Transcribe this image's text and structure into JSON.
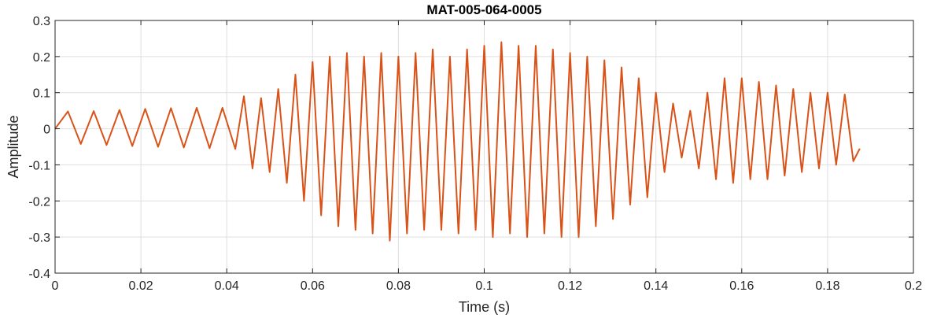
{
  "chart_data": {
    "type": "line",
    "title": "MAT-005-064-0005",
    "xlabel": "Time (s)",
    "ylabel": "Amplitude",
    "xlim": [
      0,
      0.2
    ],
    "ylim": [
      -0.4,
      0.3
    ],
    "xticks": [
      0,
      0.02,
      0.04,
      0.06,
      0.08,
      0.1,
      0.12,
      0.14,
      0.16,
      0.18,
      0.2
    ],
    "xtick_labels": [
      "0",
      "0.02",
      "0.04",
      "0.06",
      "0.08",
      "0.1",
      "0.12",
      "0.14",
      "0.16",
      "0.18",
      "0.2"
    ],
    "yticks": [
      0.3,
      0.2,
      0.1,
      0,
      -0.1,
      -0.2,
      -0.3,
      -0.4
    ],
    "ytick_labels": [
      "0.3",
      "0.2",
      "0.1",
      "0",
      "-0.1",
      "-0.2",
      "-0.3",
      "-0.4"
    ],
    "grid": true,
    "series": [
      {
        "color": "#D95319",
        "x": [
          0,
          0.003,
          0.006,
          0.009,
          0.012,
          0.015,
          0.018,
          0.021,
          0.024,
          0.027,
          0.03,
          0.033,
          0.036,
          0.039,
          0.042,
          0.044,
          0.046,
          0.048,
          0.05,
          0.052,
          0.054,
          0.056,
          0.058,
          0.06,
          0.062,
          0.064,
          0.066,
          0.068,
          0.07,
          0.072,
          0.074,
          0.076,
          0.078,
          0.08,
          0.082,
          0.084,
          0.086,
          0.088,
          0.09,
          0.092,
          0.094,
          0.096,
          0.098,
          0.1,
          0.102,
          0.104,
          0.106,
          0.108,
          0.11,
          0.112,
          0.114,
          0.116,
          0.118,
          0.12,
          0.122,
          0.124,
          0.126,
          0.128,
          0.13,
          0.132,
          0.134,
          0.136,
          0.138,
          0.14,
          0.142,
          0.144,
          0.146,
          0.148,
          0.15,
          0.152,
          0.154,
          0.156,
          0.158,
          0.16,
          0.162,
          0.164,
          0.166,
          0.168,
          0.17,
          0.172,
          0.174,
          0.176,
          0.178,
          0.18,
          0.182,
          0.184,
          0.186,
          0.1875
        ],
        "y": [
          0,
          0.048,
          -0.042,
          0.049,
          -0.045,
          0.052,
          -0.048,
          0.055,
          -0.05,
          0.057,
          -0.052,
          0.058,
          -0.054,
          0.058,
          -0.056,
          0.09,
          -0.11,
          0.085,
          -0.12,
          0.11,
          -0.15,
          0.15,
          -0.2,
          0.185,
          -0.24,
          0.2,
          -0.27,
          0.21,
          -0.28,
          0.2,
          -0.29,
          0.21,
          -0.31,
          0.2,
          -0.29,
          0.21,
          -0.28,
          0.22,
          -0.28,
          0.2,
          -0.29,
          0.22,
          -0.28,
          0.23,
          -0.3,
          0.24,
          -0.29,
          0.23,
          -0.3,
          0.23,
          -0.29,
          0.22,
          -0.3,
          0.21,
          -0.3,
          0.2,
          -0.27,
          0.19,
          -0.25,
          0.17,
          -0.21,
          0.14,
          -0.19,
          0.1,
          -0.12,
          0.07,
          -0.08,
          0.05,
          -0.11,
          0.1,
          -0.14,
          0.14,
          -0.15,
          0.14,
          -0.14,
          0.13,
          -0.14,
          0.12,
          -0.13,
          0.11,
          -0.12,
          0.1,
          -0.11,
          0.1,
          -0.1,
          0.095,
          -0.09,
          -0.055
        ]
      }
    ]
  }
}
